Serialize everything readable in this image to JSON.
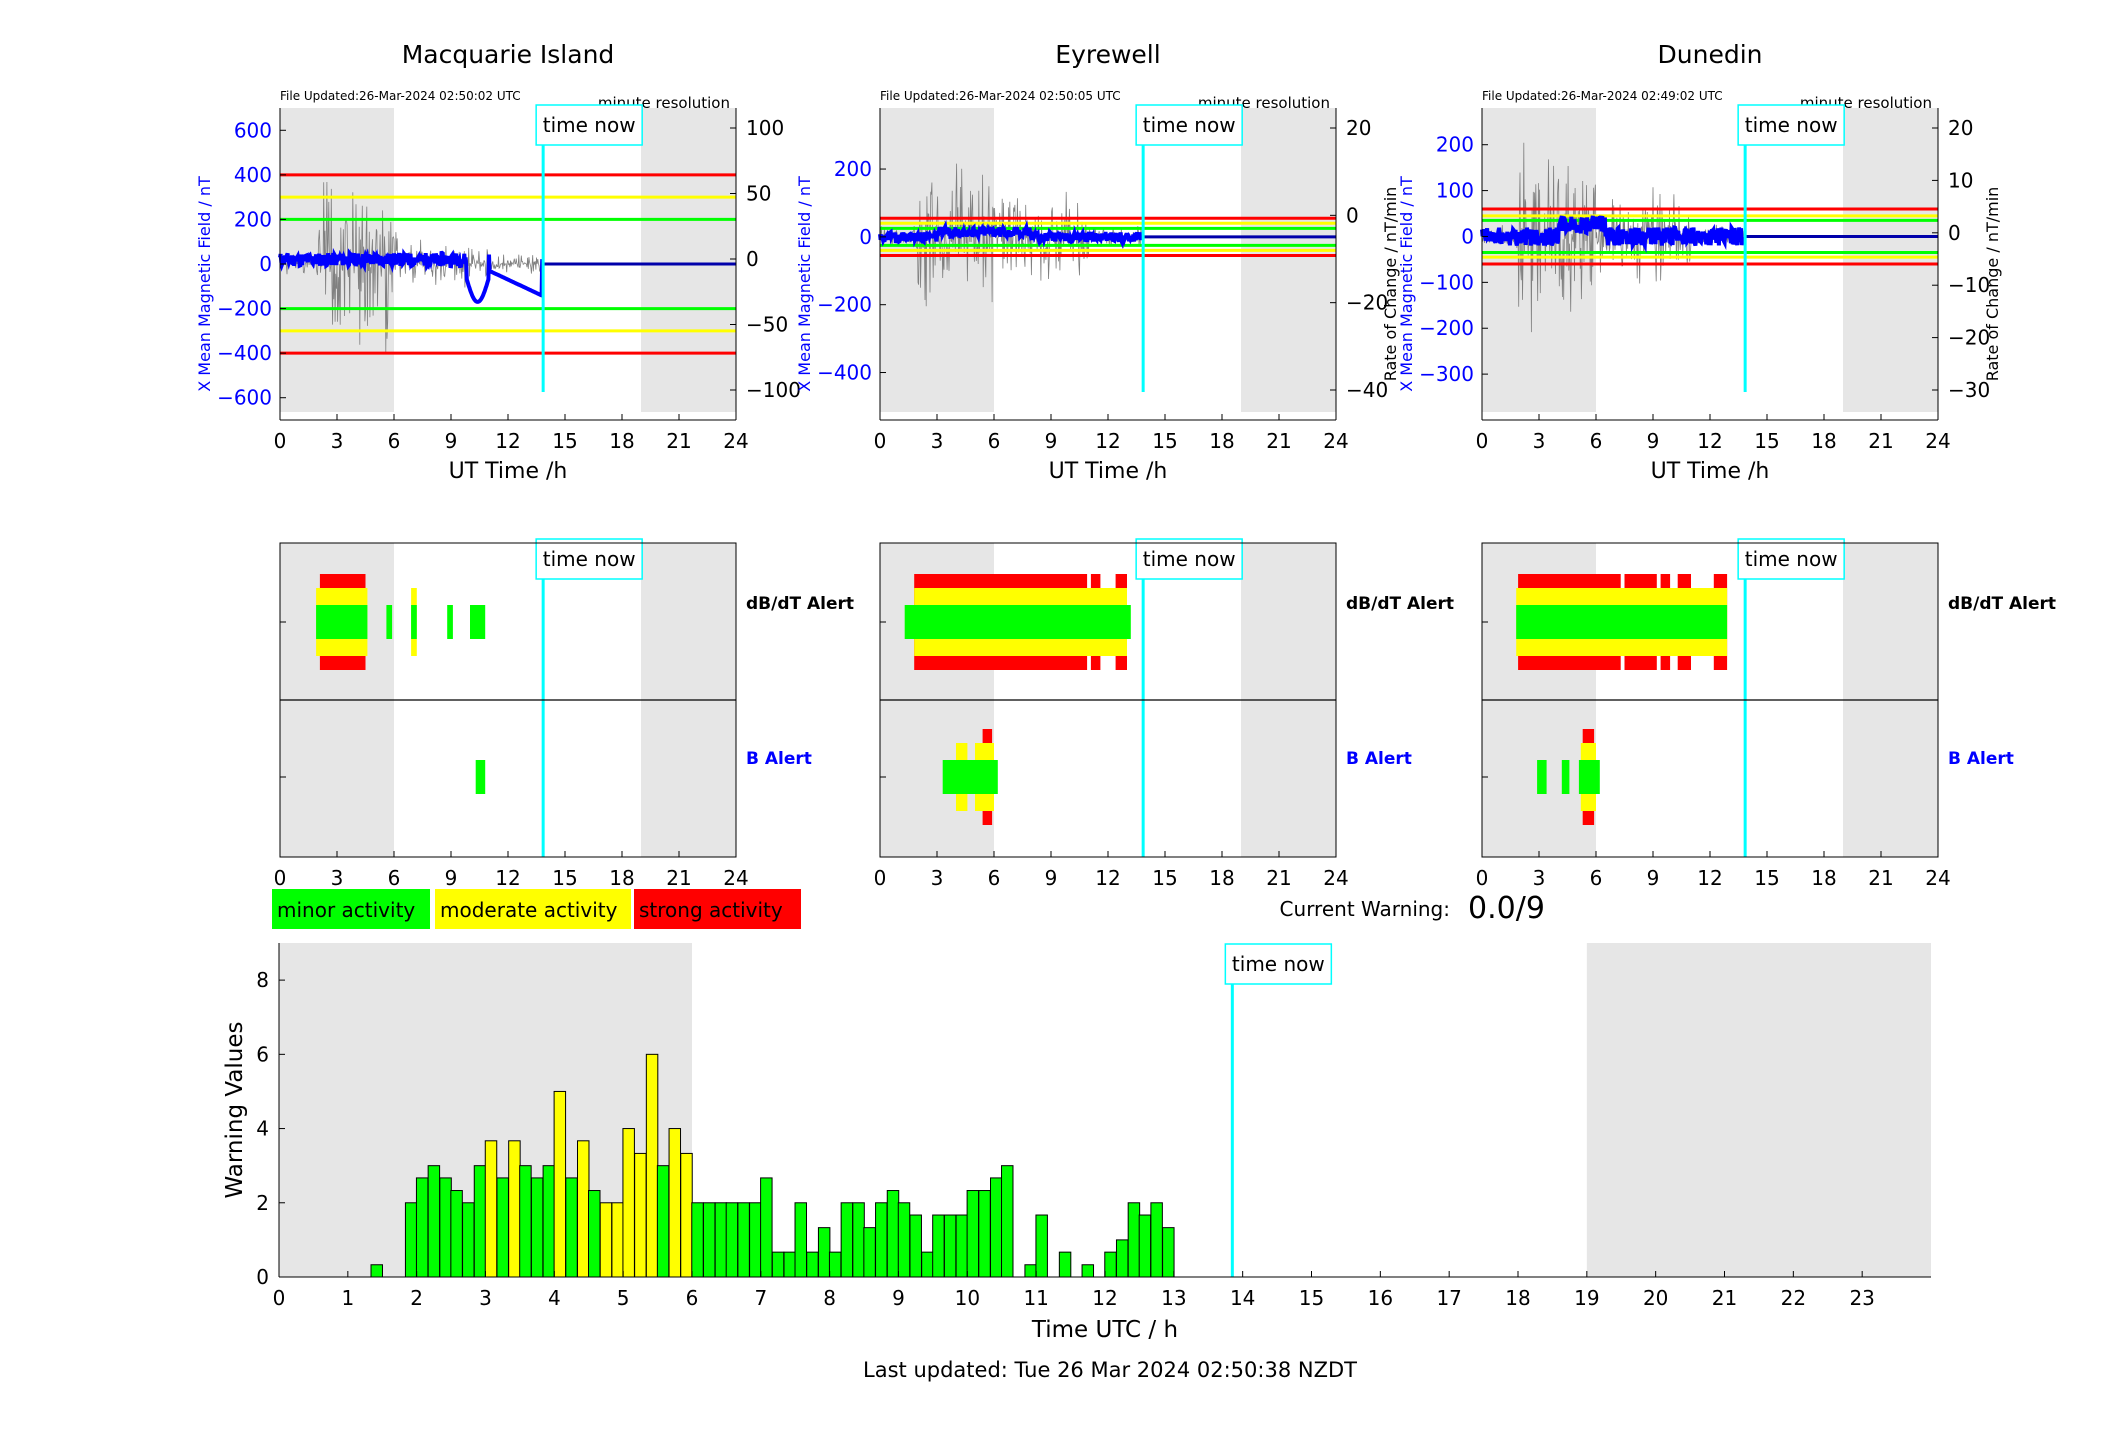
{
  "stations": [
    {
      "name": "Macquarie Island",
      "file_updated": "File Updated:26-Mar-2024 02:50:02 UTC",
      "resolution": "minute resolution",
      "left_ylabel": "X Mean Magnetic Field / nT",
      "right_ylabel": "",
      "left_ylim": [
        -700,
        700
      ],
      "left_ticks": [
        600,
        400,
        200,
        0,
        -200,
        -400,
        -600
      ],
      "right_ticks": [
        100,
        50,
        0,
        -50,
        -100
      ],
      "thresholds": {
        "red": 400,
        "yellow": 300,
        "green": 200
      },
      "dbdt_alert": {
        "green": [
          [
            1.9,
            4.6
          ],
          [
            5.6,
            5.9
          ],
          [
            6.9,
            7.2
          ],
          [
            8.8,
            9.1
          ],
          [
            10.0,
            10.8
          ]
        ],
        "yellow": [
          [
            1.9,
            4.6
          ],
          [
            6.9,
            7.2
          ]
        ],
        "red": [
          [
            2.1,
            4.5
          ]
        ]
      },
      "b_alert": {
        "green": [
          [
            10.3,
            10.8
          ]
        ],
        "yellow": [],
        "red": []
      }
    },
    {
      "name": "Eyrewell",
      "file_updated": "File Updated:26-Mar-2024 02:50:05 UTC",
      "resolution": "minute resolution",
      "left_ylabel": "X Mean Magnetic Field / nT",
      "right_ylabel": "Rate of Change / nT/min",
      "left_ylim": [
        -540,
        380
      ],
      "left_ticks": [
        200,
        0,
        -200,
        -400
      ],
      "right_ticks": [
        20,
        0,
        -20,
        -40
      ],
      "thresholds": {
        "red": 55,
        "yellow": 40,
        "green": 25
      },
      "dbdt_alert": {
        "green": [
          [
            1.3,
            13.2
          ]
        ],
        "yellow": [
          [
            1.8,
            13.0
          ]
        ],
        "red": [
          [
            1.8,
            10.9
          ],
          [
            11.1,
            11.6
          ],
          [
            12.4,
            13.0
          ]
        ]
      },
      "b_alert": {
        "green": [
          [
            3.3,
            6.2
          ]
        ],
        "yellow": [
          [
            4.0,
            4.6
          ],
          [
            5.0,
            6.0
          ]
        ],
        "red": [
          [
            5.4,
            5.9
          ]
        ]
      }
    },
    {
      "name": "Dunedin",
      "file_updated": "File Updated:26-Mar-2024 02:49:02 UTC",
      "resolution": "minute resolution",
      "left_ylabel": "X Mean Magnetic Field / nT",
      "right_ylabel": "Rate of Change / nT/min",
      "left_ylim": [
        -400,
        280
      ],
      "left_ticks": [
        200,
        100,
        0,
        -100,
        -200,
        -300
      ],
      "right_ticks": [
        20,
        10,
        0,
        -10,
        -20,
        -30
      ],
      "thresholds": {
        "red": 60,
        "yellow": 45,
        "green": 35
      },
      "dbdt_alert": {
        "green": [
          [
            1.8,
            12.9
          ]
        ],
        "yellow": [
          [
            1.8,
            12.9
          ]
        ],
        "red": [
          [
            1.9,
            7.3
          ],
          [
            7.5,
            9.2
          ],
          [
            9.4,
            9.9
          ],
          [
            10.3,
            11.0
          ],
          [
            12.2,
            12.9
          ]
        ]
      },
      "b_alert": {
        "green": [
          [
            2.9,
            3.4
          ],
          [
            4.2,
            4.6
          ],
          [
            5.1,
            6.2
          ]
        ],
        "yellow": [
          [
            5.2,
            6.0
          ]
        ],
        "red": [
          [
            5.3,
            5.9
          ]
        ]
      }
    }
  ],
  "station_xlabel": "UT Time /h",
  "station_x_ticks": [
    0,
    3,
    6,
    9,
    12,
    15,
    18,
    21,
    24
  ],
  "time_now_label": "time now",
  "time_now_hours": 13.85,
  "night_shading": [
    [
      0,
      6
    ],
    [
      19,
      24
    ]
  ],
  "alert_labels": {
    "dbdt": "dB/dT Alert",
    "b": "B Alert"
  },
  "legend": [
    {
      "label": "minor activity",
      "color": "#00ff00"
    },
    {
      "label": "moderate activity",
      "color": "#ffff00"
    },
    {
      "label": "strong activity",
      "color": "#ff0000"
    }
  ],
  "current_warning_label": "Current Warning:",
  "current_warning_value": "0.0/9",
  "colors": {
    "field_line": "#0000ff",
    "time_now": "#00ffff",
    "night": "#e6e6e6",
    "rate_line": "#808080"
  },
  "chart_data": {
    "type": "bar",
    "xlabel": "Time UTC / h",
    "ylabel": "Warning Values",
    "xlim": [
      0,
      24
    ],
    "ylim": [
      0,
      9
    ],
    "x_ticks": [
      0,
      1,
      2,
      3,
      4,
      5,
      6,
      7,
      8,
      9,
      10,
      11,
      12,
      13,
      14,
      15,
      16,
      17,
      18,
      19,
      20,
      21,
      22,
      23
    ],
    "y_ticks": [
      0,
      2,
      4,
      6,
      8
    ],
    "bar_width_hours": 0.1667,
    "series": [
      {
        "x": 1.42,
        "value": 0.33,
        "level": "minor"
      },
      {
        "x": 1.92,
        "value": 2.0,
        "level": "minor"
      },
      {
        "x": 2.08,
        "value": 2.67,
        "level": "minor"
      },
      {
        "x": 2.25,
        "value": 3.0,
        "level": "minor"
      },
      {
        "x": 2.42,
        "value": 2.67,
        "level": "minor"
      },
      {
        "x": 2.58,
        "value": 2.33,
        "level": "minor"
      },
      {
        "x": 2.75,
        "value": 2.0,
        "level": "minor"
      },
      {
        "x": 2.92,
        "value": 3.0,
        "level": "minor"
      },
      {
        "x": 3.08,
        "value": 3.67,
        "level": "moderate"
      },
      {
        "x": 3.25,
        "value": 2.67,
        "level": "minor"
      },
      {
        "x": 3.42,
        "value": 3.67,
        "level": "moderate"
      },
      {
        "x": 3.58,
        "value": 3.0,
        "level": "minor"
      },
      {
        "x": 3.75,
        "value": 2.67,
        "level": "minor"
      },
      {
        "x": 3.92,
        "value": 3.0,
        "level": "minor"
      },
      {
        "x": 4.08,
        "value": 5.0,
        "level": "moderate"
      },
      {
        "x": 4.25,
        "value": 2.67,
        "level": "minor"
      },
      {
        "x": 4.42,
        "value": 3.67,
        "level": "moderate"
      },
      {
        "x": 4.58,
        "value": 2.33,
        "level": "minor"
      },
      {
        "x": 4.75,
        "value": 2.0,
        "level": "moderate"
      },
      {
        "x": 4.92,
        "value": 2.0,
        "level": "moderate"
      },
      {
        "x": 5.08,
        "value": 4.0,
        "level": "moderate"
      },
      {
        "x": 5.25,
        "value": 3.33,
        "level": "moderate"
      },
      {
        "x": 5.42,
        "value": 6.0,
        "level": "moderate"
      },
      {
        "x": 5.58,
        "value": 3.0,
        "level": "minor"
      },
      {
        "x": 5.75,
        "value": 4.0,
        "level": "moderate"
      },
      {
        "x": 5.92,
        "value": 3.33,
        "level": "moderate"
      },
      {
        "x": 6.08,
        "value": 2.0,
        "level": "minor"
      },
      {
        "x": 6.25,
        "value": 2.0,
        "level": "minor"
      },
      {
        "x": 6.42,
        "value": 2.0,
        "level": "minor"
      },
      {
        "x": 6.58,
        "value": 2.0,
        "level": "minor"
      },
      {
        "x": 6.75,
        "value": 2.0,
        "level": "minor"
      },
      {
        "x": 6.92,
        "value": 2.0,
        "level": "minor"
      },
      {
        "x": 7.08,
        "value": 2.67,
        "level": "minor"
      },
      {
        "x": 7.25,
        "value": 0.67,
        "level": "minor"
      },
      {
        "x": 7.42,
        "value": 0.67,
        "level": "minor"
      },
      {
        "x": 7.58,
        "value": 2.0,
        "level": "minor"
      },
      {
        "x": 7.75,
        "value": 0.67,
        "level": "minor"
      },
      {
        "x": 7.92,
        "value": 1.33,
        "level": "minor"
      },
      {
        "x": 8.08,
        "value": 0.67,
        "level": "minor"
      },
      {
        "x": 8.25,
        "value": 2.0,
        "level": "minor"
      },
      {
        "x": 8.42,
        "value": 2.0,
        "level": "minor"
      },
      {
        "x": 8.58,
        "value": 1.33,
        "level": "minor"
      },
      {
        "x": 8.75,
        "value": 2.0,
        "level": "minor"
      },
      {
        "x": 8.92,
        "value": 2.33,
        "level": "minor"
      },
      {
        "x": 9.08,
        "value": 2.0,
        "level": "minor"
      },
      {
        "x": 9.25,
        "value": 1.67,
        "level": "minor"
      },
      {
        "x": 9.42,
        "value": 0.67,
        "level": "minor"
      },
      {
        "x": 9.58,
        "value": 1.67,
        "level": "minor"
      },
      {
        "x": 9.75,
        "value": 1.67,
        "level": "minor"
      },
      {
        "x": 9.92,
        "value": 1.67,
        "level": "minor"
      },
      {
        "x": 10.08,
        "value": 2.33,
        "level": "minor"
      },
      {
        "x": 10.25,
        "value": 2.33,
        "level": "minor"
      },
      {
        "x": 10.42,
        "value": 2.67,
        "level": "minor"
      },
      {
        "x": 10.58,
        "value": 3.0,
        "level": "minor"
      },
      {
        "x": 10.92,
        "value": 0.33,
        "level": "minor"
      },
      {
        "x": 11.08,
        "value": 1.67,
        "level": "minor"
      },
      {
        "x": 11.42,
        "value": 0.67,
        "level": "minor"
      },
      {
        "x": 11.75,
        "value": 0.33,
        "level": "minor"
      },
      {
        "x": 12.08,
        "value": 0.67,
        "level": "minor"
      },
      {
        "x": 12.25,
        "value": 1.0,
        "level": "minor"
      },
      {
        "x": 12.42,
        "value": 2.0,
        "level": "minor"
      },
      {
        "x": 12.58,
        "value": 1.67,
        "level": "minor"
      },
      {
        "x": 12.75,
        "value": 2.0,
        "level": "minor"
      },
      {
        "x": 12.92,
        "value": 1.33,
        "level": "minor"
      }
    ]
  },
  "last_updated": "Last updated: Tue 26 Mar 2024 02:50:38 NZDT"
}
